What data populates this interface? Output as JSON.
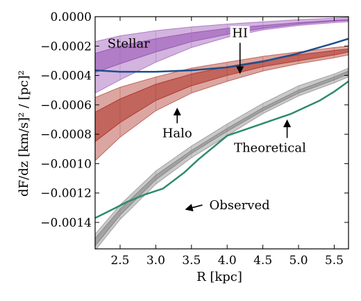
{
  "chart_data": {
    "type": "line",
    "xlabel": "R [kpc]",
    "ylabel": "dF/dz [km/s]² / [pc]²",
    "xlim": [
      2.15,
      5.7
    ],
    "ylim": [
      -0.00158,
      0.0
    ],
    "x_ticks": [
      "2.5",
      "3.0",
      "3.5",
      "4.0",
      "4.5",
      "5.0",
      "5.5"
    ],
    "y_ticks": [
      "0.0000",
      "−0.0002",
      "−0.0004",
      "−0.0006",
      "−0.0008",
      "−0.0010",
      "−0.0012",
      "−0.0014"
    ],
    "grid": false,
    "bands": [
      {
        "name": "Stellar",
        "color": "#9b59b6",
        "x": [
          2.15,
          2.5,
          3.0,
          3.5,
          4.0,
          4.5,
          5.0,
          5.5,
          5.7
        ],
        "outer_top": [
          -0.00017,
          -0.00013,
          -9.5e-05,
          -7e-05,
          -5e-05,
          -3.5e-05,
          -2e-05,
          -1e-05,
          -5e-06
        ],
        "outer_bottom": [
          -0.00052,
          -0.00043,
          -0.00031,
          -0.00021,
          -0.00014,
          -9e-05,
          -6e-05,
          -4e-05,
          -3.5e-05
        ],
        "inner_top": [
          -0.00025,
          -0.0002,
          -0.00015,
          -0.00011,
          -8e-05,
          -6e-05,
          -4e-05,
          -2.5e-05,
          -2e-05
        ],
        "inner_bottom": [
          -0.00038,
          -0.00032,
          -0.00024,
          -0.00017,
          -0.00012,
          -8e-05,
          -5e-05,
          -3e-05,
          -2.5e-05
        ]
      },
      {
        "name": "Halo",
        "color": "#b03a2e",
        "x": [
          2.15,
          2.5,
          3.0,
          3.5,
          4.0,
          4.5,
          5.0,
          5.5,
          5.7
        ],
        "outer_top": [
          -0.00055,
          -0.00048,
          -0.00041,
          -0.00035,
          -0.00031,
          -0.00027,
          -0.00024,
          -0.00021,
          -0.0002
        ],
        "outer_bottom": [
          -0.00098,
          -0.00082,
          -0.00064,
          -0.00052,
          -0.00044,
          -0.00037,
          -0.00032,
          -0.00028,
          -0.00026
        ],
        "inner_top": [
          -0.00065,
          -0.00056,
          -0.00046,
          -0.00039,
          -0.00034,
          -0.0003,
          -0.00026,
          -0.00023,
          -0.00022
        ],
        "inner_bottom": [
          -0.00085,
          -0.00072,
          -0.00057,
          -0.00047,
          -0.0004,
          -0.00034,
          -0.0003,
          -0.00026,
          -0.00024
        ]
      },
      {
        "name": "Theoretical",
        "color": "#888888",
        "x": [
          2.15,
          2.5,
          3.0,
          3.5,
          4.0,
          4.5,
          5.0,
          5.5,
          5.7
        ],
        "outer_top": [
          -0.00148,
          -0.00128,
          -0.00105,
          -0.00088,
          -0.00073,
          -0.00059,
          -0.00047,
          -0.00039,
          -0.00035
        ],
        "outer_bottom": [
          -0.00159,
          -0.00138,
          -0.00114,
          -0.00096,
          -0.00081,
          -0.00066,
          -0.00054,
          -0.00045,
          -0.00041
        ],
        "inner_top": [
          -0.00151,
          -0.00131,
          -0.00108,
          -0.00091,
          -0.00076,
          -0.00062,
          -0.0005,
          -0.00041,
          -0.00037
        ],
        "inner_bottom": [
          -0.00156,
          -0.00135,
          -0.00111,
          -0.00093,
          -0.00078,
          -0.00064,
          -0.00052,
          -0.00043,
          -0.00039
        ]
      }
    ],
    "lines": [
      {
        "name": "HI",
        "color": "#1f4e8c",
        "x": [
          2.15,
          2.5,
          3.0,
          3.5,
          4.0,
          4.5,
          5.0,
          5.5,
          5.7
        ],
        "y": [
          -0.000365,
          -0.000375,
          -0.000375,
          -0.000365,
          -0.000345,
          -0.000305,
          -0.00025,
          -0.00018,
          -0.00015
        ]
      },
      {
        "name": "Observed",
        "color": "#2e8b6a",
        "x": [
          2.15,
          2.4,
          2.6,
          2.85,
          3.1,
          3.4,
          3.6,
          4.0,
          4.3,
          4.6,
          4.9,
          5.3,
          5.5,
          5.7
        ],
        "y": [
          -0.00137,
          -0.00131,
          -0.00126,
          -0.00121,
          -0.00117,
          -0.00106,
          -0.00097,
          -0.00081,
          -0.00076,
          -0.00071,
          -0.00066,
          -0.00057,
          -0.00051,
          -0.00044
        ]
      }
    ],
    "annotations": [
      {
        "text": "Stellar",
        "x": 2.62,
        "y": -0.00021
      },
      {
        "text": "HI",
        "x": 4.18,
        "y": -0.00014,
        "arrow_to": [
          4.18,
          -0.00038
        ]
      },
      {
        "text": "Halo",
        "x": 3.3,
        "y": -0.00082,
        "arrow_to": [
          3.3,
          -0.00063
        ]
      },
      {
        "text": "Theoretical",
        "x": 4.6,
        "y": -0.00092,
        "arrow_to": [
          4.84,
          -0.00071
        ]
      },
      {
        "text": "Observed",
        "x": 3.75,
        "y": -0.00131,
        "arrow_to": [
          3.43,
          -0.00131
        ]
      }
    ]
  }
}
